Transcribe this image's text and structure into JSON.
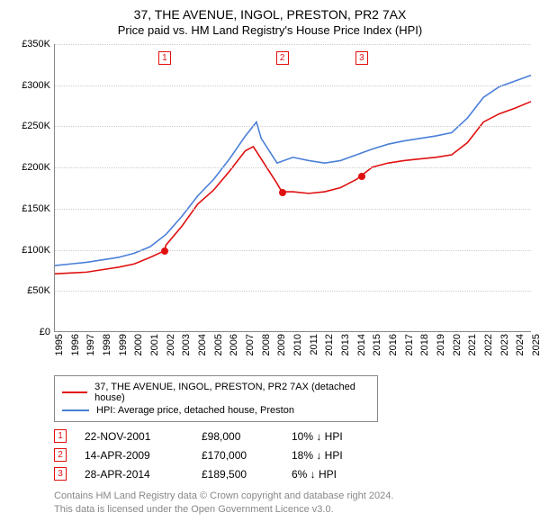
{
  "title": "37, THE AVENUE, INGOL, PRESTON, PR2 7AX",
  "subtitle": "Price paid vs. HM Land Registry's House Price Index (HPI)",
  "chart": {
    "type": "line",
    "ylim": [
      0,
      350000
    ],
    "ytick_step": 50000,
    "ytick_labels": [
      "£0",
      "£50K",
      "£100K",
      "£150K",
      "£200K",
      "£250K",
      "£300K",
      "£350K"
    ],
    "x_years": [
      1995,
      1996,
      1997,
      1998,
      1999,
      2000,
      2001,
      2002,
      2003,
      2004,
      2005,
      2006,
      2007,
      2008,
      2009,
      2010,
      2011,
      2012,
      2013,
      2014,
      2015,
      2016,
      2017,
      2018,
      2019,
      2020,
      2021,
      2022,
      2023,
      2024,
      2025
    ],
    "grid_color": "#cccccc",
    "axis_color": "#888888",
    "series": [
      {
        "name": "37, THE AVENUE, INGOL, PRESTON, PR2 7AX (detached house)",
        "color": "#e01010",
        "data": [
          [
            1995,
            70000
          ],
          [
            1996,
            71000
          ],
          [
            1997,
            72000
          ],
          [
            1998,
            75000
          ],
          [
            1999,
            78000
          ],
          [
            2000,
            82000
          ],
          [
            2001,
            90000
          ],
          [
            2001.9,
            98000
          ],
          [
            2002,
            105000
          ],
          [
            2003,
            128000
          ],
          [
            2004,
            155000
          ],
          [
            2005,
            172000
          ],
          [
            2006,
            195000
          ],
          [
            2007,
            220000
          ],
          [
            2007.5,
            225000
          ],
          [
            2008,
            210000
          ],
          [
            2009,
            180000
          ],
          [
            2009.3,
            170000
          ],
          [
            2010,
            170000
          ],
          [
            2011,
            168000
          ],
          [
            2012,
            170000
          ],
          [
            2013,
            175000
          ],
          [
            2014,
            185000
          ],
          [
            2014.3,
            189500
          ],
          [
            2015,
            200000
          ],
          [
            2016,
            205000
          ],
          [
            2017,
            208000
          ],
          [
            2018,
            210000
          ],
          [
            2019,
            212000
          ],
          [
            2020,
            215000
          ],
          [
            2021,
            230000
          ],
          [
            2022,
            255000
          ],
          [
            2023,
            265000
          ],
          [
            2024,
            272000
          ],
          [
            2025,
            280000
          ]
        ]
      },
      {
        "name": "HPI: Average price, detached house, Preston",
        "color": "#4a7fd8",
        "data": [
          [
            1995,
            80000
          ],
          [
            1996,
            82000
          ],
          [
            1997,
            84000
          ],
          [
            1998,
            87000
          ],
          [
            1999,
            90000
          ],
          [
            2000,
            95000
          ],
          [
            2001,
            103000
          ],
          [
            2002,
            118000
          ],
          [
            2003,
            140000
          ],
          [
            2004,
            165000
          ],
          [
            2005,
            185000
          ],
          [
            2006,
            210000
          ],
          [
            2007,
            238000
          ],
          [
            2007.7,
            255000
          ],
          [
            2008,
            235000
          ],
          [
            2009,
            205000
          ],
          [
            2010,
            212000
          ],
          [
            2011,
            208000
          ],
          [
            2012,
            205000
          ],
          [
            2013,
            208000
          ],
          [
            2014,
            215000
          ],
          [
            2015,
            222000
          ],
          [
            2016,
            228000
          ],
          [
            2017,
            232000
          ],
          [
            2018,
            235000
          ],
          [
            2019,
            238000
          ],
          [
            2020,
            242000
          ],
          [
            2021,
            260000
          ],
          [
            2022,
            285000
          ],
          [
            2023,
            298000
          ],
          [
            2024,
            305000
          ],
          [
            2025,
            312000
          ]
        ]
      }
    ],
    "sale_markers": [
      {
        "n": "1",
        "year": 2001.9,
        "price": 98000,
        "color": "#e01010"
      },
      {
        "n": "2",
        "year": 2009.3,
        "price": 170000,
        "color": "#e01010"
      },
      {
        "n": "3",
        "year": 2014.3,
        "price": 189500,
        "color": "#e01010"
      }
    ]
  },
  "legend": [
    {
      "label": "37, THE AVENUE, INGOL, PRESTON, PR2 7AX (detached house)",
      "color": "#e01010"
    },
    {
      "label": "HPI: Average price, detached house, Preston",
      "color": "#4a7fd8"
    }
  ],
  "sales": [
    {
      "n": "1",
      "date": "22-NOV-2001",
      "price": "£98,000",
      "diff": "10% ↓ HPI",
      "color": "#e01010"
    },
    {
      "n": "2",
      "date": "14-APR-2009",
      "price": "£170,000",
      "diff": "18% ↓ HPI",
      "color": "#e01010"
    },
    {
      "n": "3",
      "date": "28-APR-2014",
      "price": "£189,500",
      "diff": "6% ↓ HPI",
      "color": "#e01010"
    }
  ],
  "footer": {
    "line1": "Contains HM Land Registry data © Crown copyright and database right 2024.",
    "line2": "This data is licensed under the Open Government Licence v3.0."
  }
}
